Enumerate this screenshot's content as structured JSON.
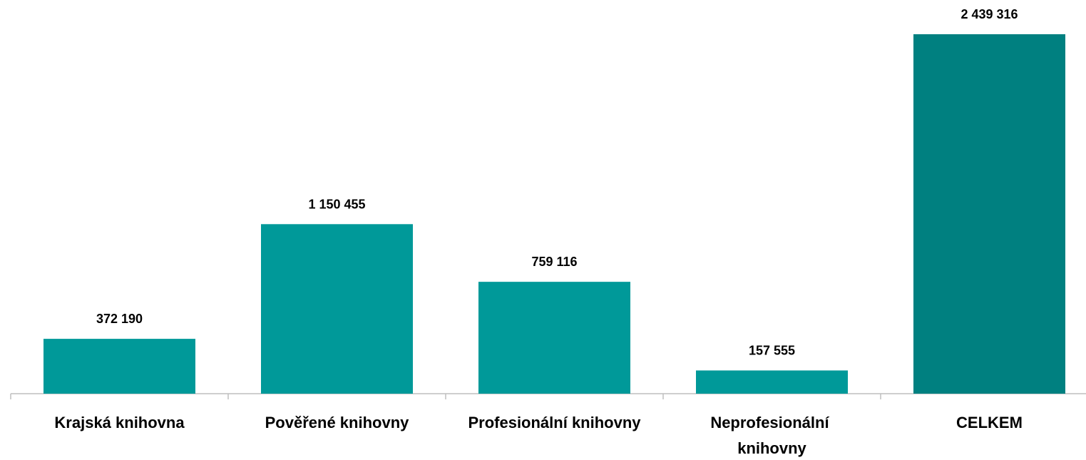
{
  "chart_data": {
    "type": "bar",
    "categories": [
      "Krajská knihovna",
      "Pověřené knihovny",
      "Profesionální knihovny",
      "Neprofesionální knihovny",
      "CELKEM"
    ],
    "values": [
      372190,
      1150455,
      759116,
      157555,
      2439316
    ],
    "value_labels": [
      "372 190",
      "1 150 455",
      "759 116",
      "157 555",
      "2 439 316"
    ],
    "colors": [
      "#009999",
      "#009999",
      "#009999",
      "#009999",
      "#008080"
    ]
  }
}
